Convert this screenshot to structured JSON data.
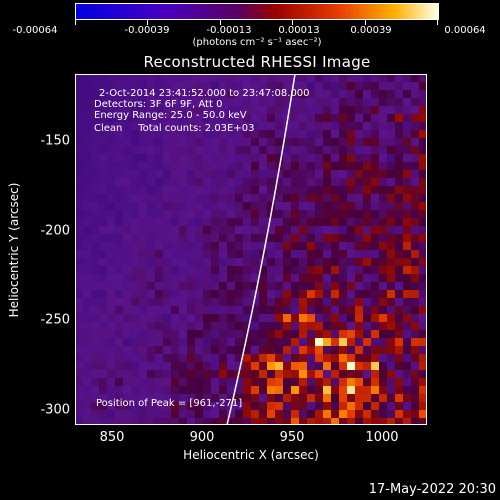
{
  "colorbar": {
    "tick_labels": [
      "-0.00064",
      "-0.00039",
      "-0.00013",
      "0.00013",
      "0.00039",
      "0.00064"
    ],
    "units": "(photons cm⁻² s⁻¹ asec⁻²)",
    "colors": [
      "#0000c8",
      "#3a00b0",
      "#6a008c",
      "#9b0000",
      "#e23b00",
      "#ff9b00",
      "#ffff80",
      "#ffffff"
    ]
  },
  "title": "Reconstructed RHESSI Image",
  "info": {
    "time_range": "2-Oct-2014 23:41:52.000 to 23:47:08.000",
    "detectors": "Detectors: 3F 6F 9F, Att 0",
    "energy": "Energy Range: 25.0 - 50.0 keV",
    "clean": "Clean     Total counts: 2.03E+03",
    "peak": "Position of Peak = [961,-271]"
  },
  "axes": {
    "x_title": "Heliocentric X (arcsec)",
    "y_title": "Heliocentric Y (arcsec)",
    "x_ticks": [
      "850",
      "900",
      "950",
      "1000"
    ],
    "y_ticks": [
      "-150",
      "-200",
      "-250",
      "-300"
    ]
  },
  "footer": "17-May-2022 20:30"
}
